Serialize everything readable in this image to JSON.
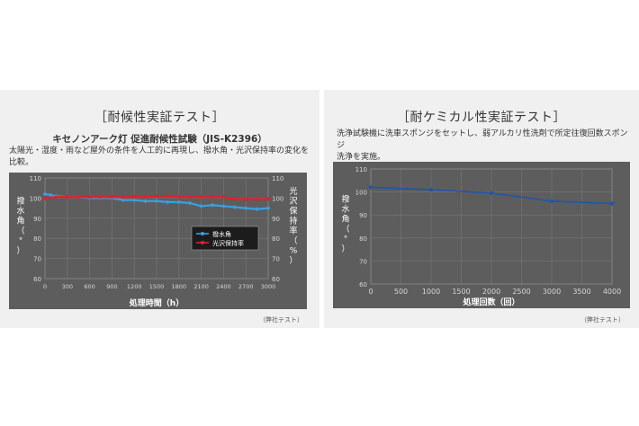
{
  "left": {
    "title": "［耐候性実証テスト］",
    "subtitle": "キセノンアーク灯 促進耐候性試験（JIS-K2396）",
    "desc_line1": "太陽光・湿度・雨など屋外の条件を人工的に再現し、撥水角・光沢保持率の変化を",
    "desc_line2": "比較。",
    "note": "（弊社テスト）"
  },
  "right": {
    "title": "［耐ケミカル性実証テスト］",
    "desc_line1": "洗浄試験機に洗車スポンジをセットし、弱アルカリ性洗剤で所定往復回数スポンジ",
    "desc_line2": "洗浄を実施。",
    "note": "（弊社テスト）"
  },
  "colors": {
    "plot_bg": "#5d5d5d",
    "blue": "#3aa0de",
    "red": "#e0202a",
    "navy": "#1f56a8",
    "grid": "#777777"
  },
  "chart_data": [
    {
      "type": "line",
      "xlabel": "処理時間（h）",
      "ylabel": "撥水角（°）",
      "y2label": "光沢保持率（%）",
      "xlim": [
        0,
        3000
      ],
      "ylim": [
        60,
        110
      ],
      "y2lim": [
        60,
        110
      ],
      "x_ticks": [
        "0",
        "300",
        "600",
        "900",
        "1200",
        "1500",
        "1800",
        "2100",
        "2400",
        "2700",
        "3000"
      ],
      "y_ticks": [
        "60",
        "70",
        "80",
        "90",
        "100",
        "110"
      ],
      "y2_ticks": [
        "60",
        "70",
        "80",
        "90",
        "100",
        "110"
      ],
      "legend_position": "center-right",
      "series": [
        {
          "name": "撥水角",
          "color": "#3aa0de",
          "axis": "left",
          "x": [
            0,
            75,
            150,
            300,
            450,
            600,
            750,
            900,
            1050,
            1200,
            1350,
            1500,
            1650,
            1800,
            1950,
            2100,
            2250,
            2400,
            2550,
            2700,
            2850,
            3000
          ],
          "y": [
            102,
            101.5,
            101,
            100.5,
            100.5,
            100,
            100,
            100,
            99,
            99,
            98.5,
            98.5,
            98,
            98,
            97.5,
            96,
            96.5,
            96,
            95.5,
            95,
            94.5,
            95
          ]
        },
        {
          "name": "光沢保持率",
          "color": "#e0202a",
          "axis": "right",
          "x": [
            0,
            150,
            300,
            450,
            600,
            750,
            900,
            1050,
            1200,
            1350,
            1500,
            1650,
            1800,
            1950,
            2100,
            2250,
            2400,
            2550,
            2700,
            2850,
            3000
          ],
          "y": [
            100,
            100.5,
            100.5,
            100.5,
            100.5,
            100.5,
            100.5,
            100.5,
            100.5,
            100.5,
            101,
            101,
            100.5,
            100.5,
            100.5,
            100.5,
            100.5,
            99.5,
            99.5,
            99.5,
            99.5
          ]
        }
      ]
    },
    {
      "type": "line",
      "xlabel": "処理回数（回）",
      "ylabel": "撥水角（°）",
      "xlim": [
        0,
        4000
      ],
      "ylim": [
        60,
        110
      ],
      "x_ticks": [
        "0",
        "500",
        "1000",
        "1500",
        "2000",
        "2500",
        "3000",
        "3500",
        "4000"
      ],
      "y_ticks": [
        "60",
        "70",
        "80",
        "90",
        "100",
        "110"
      ],
      "series": [
        {
          "color": "#1f56a8",
          "x": [
            0,
            1000,
            2000,
            3000,
            4000
          ],
          "y": [
            102,
            101,
            99.5,
            96,
            95
          ]
        }
      ]
    }
  ]
}
